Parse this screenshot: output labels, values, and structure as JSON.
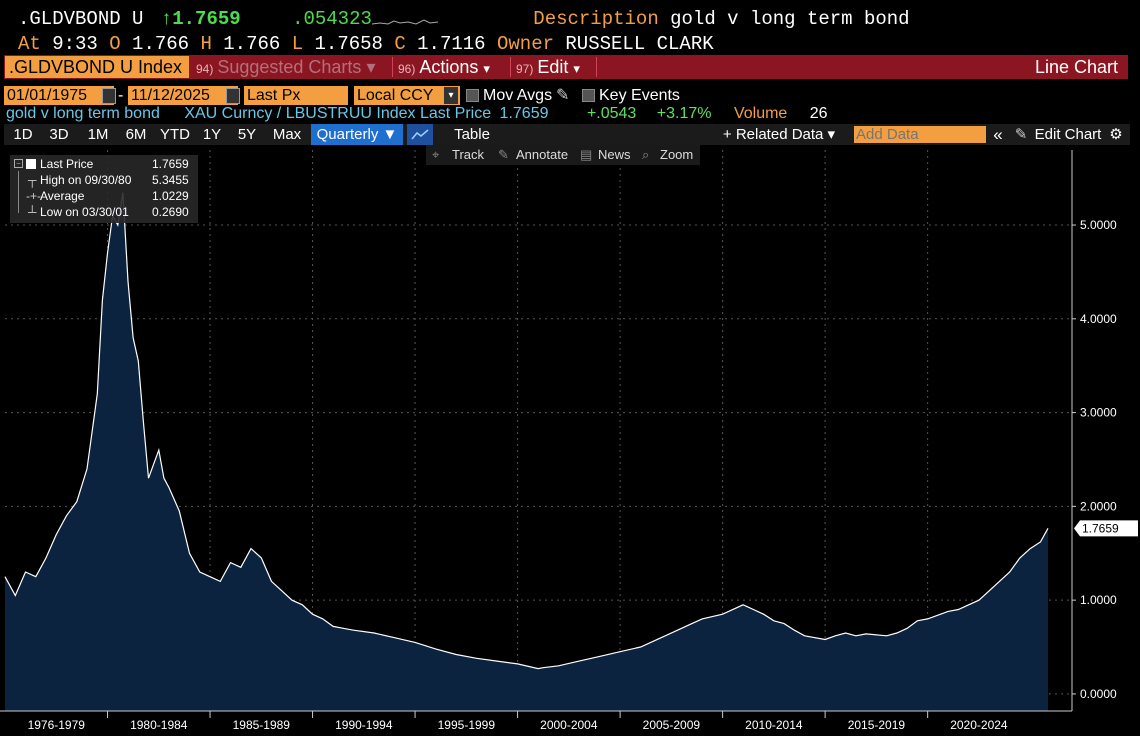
{
  "header": {
    "ticker": ".GLDVBOND U",
    "arrow": "↑",
    "last": "1.7659",
    "change": ".054323",
    "desc_label": "Description",
    "desc_value": "gold v long term bond",
    "at_label": "At",
    "at_value": "9:33",
    "o_label": "O",
    "o_value": "1.766",
    "h_label": "H",
    "h_value": "1.766",
    "l_label": "L",
    "l_value": "1.7658",
    "c_label": "C",
    "c_value": "1.7116",
    "owner_label": "Owner",
    "owner_value": "RUSSELL CLARK"
  },
  "menu": {
    "ticker_box": ".GLDVBOND U Index",
    "suggested_num": "94)",
    "suggested": "Suggested Charts",
    "actions_num": "96)",
    "actions": "Actions",
    "edit_num": "97)",
    "edit": "Edit",
    "title": "Line Chart"
  },
  "controls": {
    "start_date": "01/01/1975",
    "dash": "-",
    "end_date": "11/12/2025",
    "field": "Last Px",
    "currency": "Local CCY",
    "mov_avgs": "Mov Avgs",
    "key_events": "Key Events"
  },
  "security_row": {
    "name": "gold v long term bond",
    "formula": "XAU Curncy / LBUSTRUU Index Last Price",
    "last": "1.7659",
    "change": "+.0543",
    "pct": "+3.17%",
    "volume_label": "Volume",
    "volume": "26"
  },
  "toolbar": {
    "ranges": [
      "1D",
      "3D",
      "1M",
      "6M",
      "YTD",
      "1Y",
      "5Y",
      "Max"
    ],
    "period": "Quarterly ▼",
    "table": "Table",
    "related": "+ Related Data ▾",
    "add_data_placeholder": "Add Data",
    "collapse": "«",
    "edit_chart": "Edit Chart"
  },
  "tools": {
    "track": "Track",
    "annotate": "Annotate",
    "news": "News",
    "zoom": "Zoom"
  },
  "legend": {
    "last_label": "Last Price",
    "last_value": "1.7659",
    "high_label": "High on 09/30/80",
    "high_value": "5.3455",
    "avg_label": "Average",
    "avg_value": "1.0229",
    "low_label": "Low on 03/30/01",
    "low_value": "0.2690"
  },
  "colors": {
    "accent": "#f39f41",
    "menu_bg": "#8b1621",
    "area_fill": "#0c2340",
    "line": "#ffffff"
  },
  "chart_data": {
    "type": "area",
    "ylim": [
      -0.15,
      5.8
    ],
    "yticks": [
      0,
      1,
      2,
      3,
      4,
      5
    ],
    "ytick_labels": [
      "0.0000",
      "1.0000",
      "2.0000",
      "3.0000",
      "4.0000",
      "5.0000"
    ],
    "last_label": "1.7659",
    "x_categories": [
      "1976-1979",
      "1980-1984",
      "1985-1989",
      "1990-1994",
      "1995-1999",
      "2000-2004",
      "2005-2009",
      "2010-2014",
      "2015-2019",
      "2020-2024"
    ],
    "grid": true,
    "series": [
      {
        "x": [
          1975.0,
          1975.5,
          1976.0,
          1976.5,
          1977.0,
          1977.5,
          1978.0,
          1978.5,
          1979.0,
          1979.5,
          1979.75,
          1980.0,
          1980.25,
          1980.5,
          1980.75,
          1981.0,
          1981.25,
          1981.5,
          1981.75,
          1982.0,
          1982.25,
          1982.5,
          1982.75,
          1983.0,
          1983.5,
          1984.0,
          1984.5,
          1985.0,
          1985.5,
          1986.0,
          1986.5,
          1987.0,
          1987.5,
          1988.0,
          1988.5,
          1989.0,
          1989.5,
          1990.0,
          1990.5,
          1991.0,
          1991.5,
          1992.0,
          1993.0,
          1994.0,
          1995.0,
          1996.0,
          1997.0,
          1998.0,
          1999.0,
          2000.0,
          2001.0,
          2001.25,
          2002.0,
          2003.0,
          2004.0,
          2005.0,
          2006.0,
          2007.0,
          2008.0,
          2008.5,
          2009.0,
          2010.0,
          2011.0,
          2011.5,
          2012.0,
          2012.5,
          2013.0,
          2013.5,
          2014.0,
          2015.0,
          2015.5,
          2016.0,
          2016.5,
          2017.0,
          2018.0,
          2018.5,
          2019.0,
          2019.5,
          2020.0,
          2021.0,
          2021.5,
          2022.0,
          2022.5,
          2023.0,
          2023.5,
          2024.0,
          2024.5,
          2025.0,
          2025.5,
          2025.87
        ],
        "y": [
          1.25,
          1.05,
          1.3,
          1.25,
          1.45,
          1.7,
          1.9,
          2.05,
          2.4,
          3.2,
          4.2,
          4.7,
          5.1,
          5.0,
          5.3455,
          4.4,
          3.8,
          3.55,
          2.9,
          2.3,
          2.45,
          2.6,
          2.3,
          2.2,
          1.95,
          1.5,
          1.3,
          1.25,
          1.2,
          1.4,
          1.35,
          1.55,
          1.45,
          1.2,
          1.1,
          1.0,
          0.95,
          0.85,
          0.8,
          0.72,
          0.7,
          0.68,
          0.65,
          0.6,
          0.55,
          0.48,
          0.42,
          0.38,
          0.35,
          0.32,
          0.27,
          0.28,
          0.3,
          0.35,
          0.4,
          0.45,
          0.5,
          0.6,
          0.7,
          0.75,
          0.8,
          0.85,
          0.95,
          0.9,
          0.85,
          0.78,
          0.75,
          0.68,
          0.62,
          0.58,
          0.62,
          0.65,
          0.62,
          0.64,
          0.62,
          0.65,
          0.7,
          0.78,
          0.8,
          0.88,
          0.9,
          0.95,
          1.0,
          1.1,
          1.2,
          1.3,
          1.45,
          1.55,
          1.62,
          1.7659
        ]
      }
    ]
  }
}
